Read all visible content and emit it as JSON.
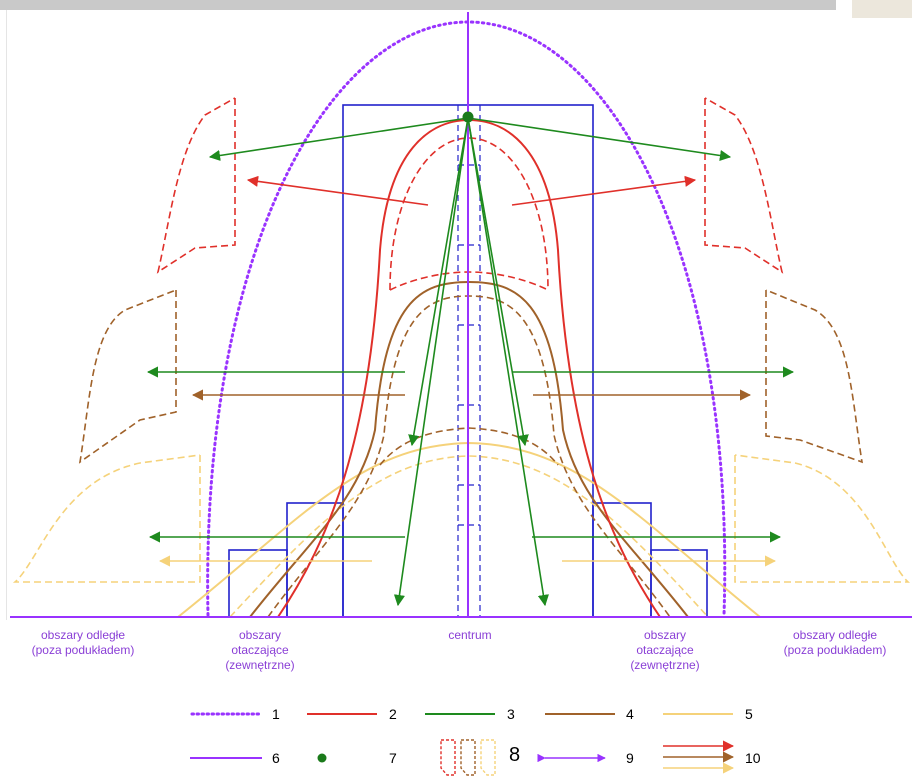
{
  "regions": {
    "far_left": "obszary odległe\n(poza podukładem)",
    "near_left": "obszary\notaczające\n(zewnętrzne)",
    "center": "centrum",
    "near_right": "obszary\notaczające\n(zewnętrzne)",
    "far_right": "obszary odległe\n(poza podukładem)"
  },
  "legend": [
    "1",
    "2",
    "3",
    "4",
    "5",
    "6",
    "7",
    "8",
    "9",
    "10"
  ],
  "colors": {
    "purple": "#9933ff",
    "red": "#e0302a",
    "green": "#1e8a1e",
    "brown": "#a0622a",
    "yellow": "#f5d27a",
    "blue": "#2222cc",
    "dot": "#1a7a1a"
  }
}
